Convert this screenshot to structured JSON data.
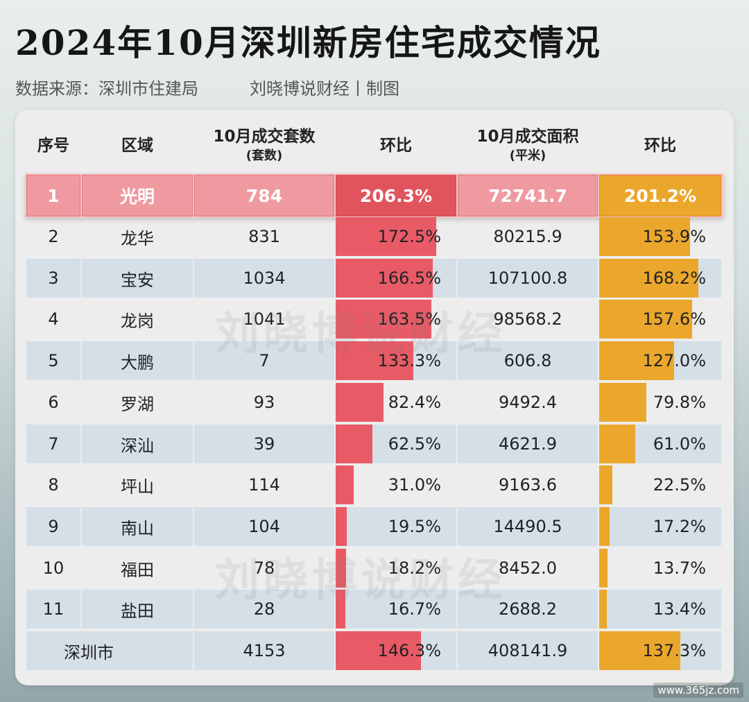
{
  "title": "2024年10月深圳新房住宅成交情况",
  "source": "数据来源：深圳市住建局",
  "author": "刘晓博说财经丨制图",
  "watermark": "刘晓博说财经",
  "footer": "www.365jz.com",
  "colors": {
    "ratio_units": "#e85a66",
    "ratio_area": "#eba72c",
    "row_blue": "#d5dfe8",
    "top_row": "#ee9aa0"
  },
  "chart_data": {
    "type": "table",
    "columns": [
      {
        "line1": "序号",
        "line2": ""
      },
      {
        "line1": "区域",
        "line2": ""
      },
      {
        "line1": "10月成交套数",
        "line2": "(套数)"
      },
      {
        "line1": "环比",
        "line2": ""
      },
      {
        "line1": "10月成交面积",
        "line2": "(平米)"
      },
      {
        "line1": "环比",
        "line2": ""
      }
    ],
    "rows": [
      {
        "rank": "1",
        "district": "光明",
        "units": "784",
        "units_mom": "206.3%",
        "area": "72741.7",
        "area_mom": "201.2%"
      },
      {
        "rank": "2",
        "district": "龙华",
        "units": "831",
        "units_mom": "172.5%",
        "area": "80215.9",
        "area_mom": "153.9%"
      },
      {
        "rank": "3",
        "district": "宝安",
        "units": "1034",
        "units_mom": "166.5%",
        "area": "107100.8",
        "area_mom": "168.2%"
      },
      {
        "rank": "4",
        "district": "龙岗",
        "units": "1041",
        "units_mom": "163.5%",
        "area": "98568.2",
        "area_mom": "157.6%"
      },
      {
        "rank": "5",
        "district": "大鹏",
        "units": "7",
        "units_mom": "133.3%",
        "area": "606.8",
        "area_mom": "127.0%"
      },
      {
        "rank": "6",
        "district": "罗湖",
        "units": "93",
        "units_mom": "82.4%",
        "area": "9492.4",
        "area_mom": "79.8%"
      },
      {
        "rank": "7",
        "district": "深汕",
        "units": "39",
        "units_mom": "62.5%",
        "area": "4621.9",
        "area_mom": "61.0%"
      },
      {
        "rank": "8",
        "district": "坪山",
        "units": "114",
        "units_mom": "31.0%",
        "area": "9163.6",
        "area_mom": "22.5%"
      },
      {
        "rank": "9",
        "district": "南山",
        "units": "104",
        "units_mom": "19.5%",
        "area": "14490.5",
        "area_mom": "17.2%"
      },
      {
        "rank": "10",
        "district": "福田",
        "units": "78",
        "units_mom": "18.2%",
        "area": "8452.0",
        "area_mom": "13.7%"
      },
      {
        "rank": "11",
        "district": "盐田",
        "units": "28",
        "units_mom": "16.7%",
        "area": "2688.2",
        "area_mom": "13.4%"
      }
    ],
    "total": {
      "district": "深圳市",
      "units": "4153",
      "units_mom": "146.3%",
      "area": "408141.9",
      "area_mom": "137.3%"
    },
    "bar_scale_max": 206.3
  }
}
